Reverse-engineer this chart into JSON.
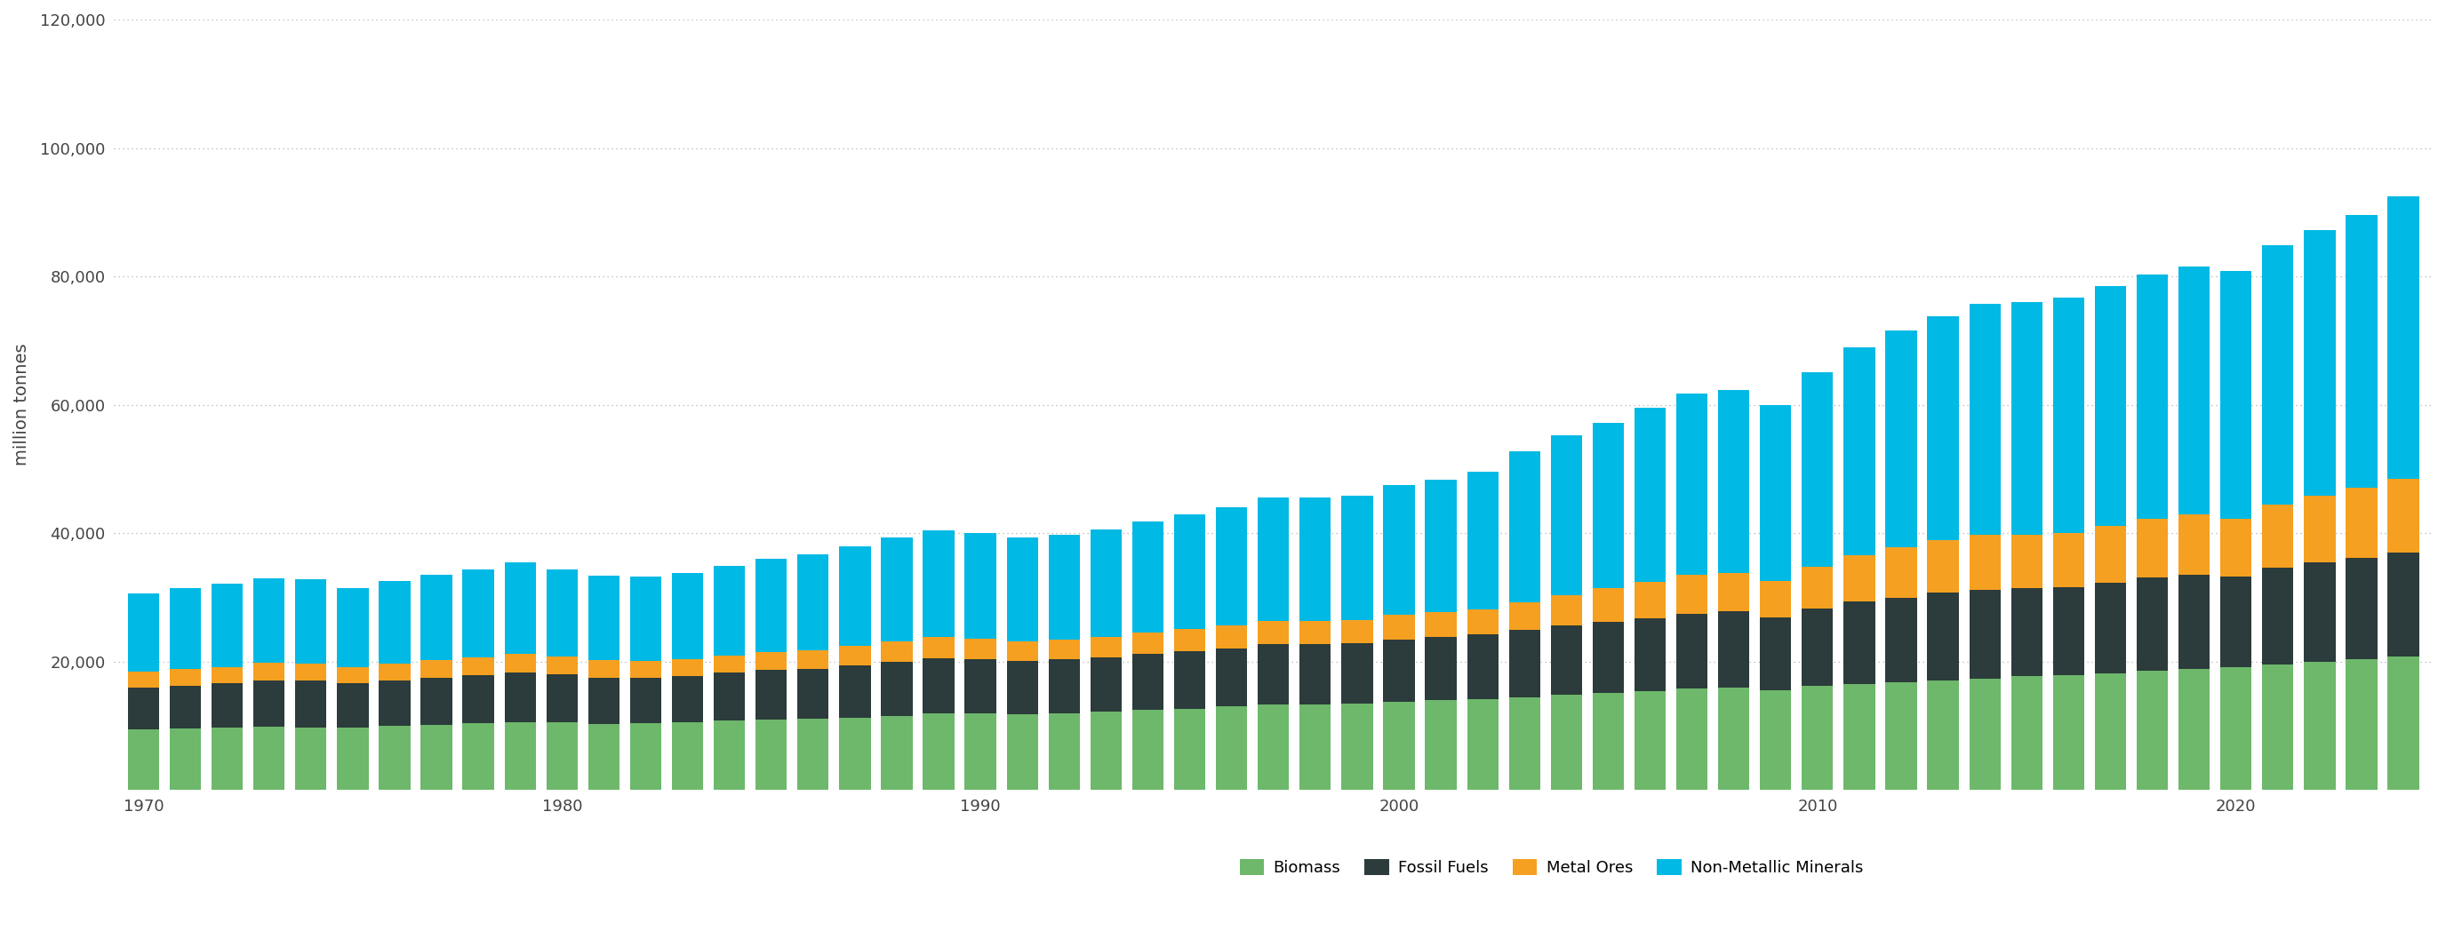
{
  "years": [
    1970,
    1971,
    1972,
    1973,
    1974,
    1975,
    1976,
    1977,
    1978,
    1979,
    1980,
    1981,
    1982,
    1983,
    1984,
    1985,
    1986,
    1987,
    1988,
    1989,
    1990,
    1991,
    1992,
    1993,
    1994,
    1995,
    1996,
    1997,
    1998,
    1999,
    2000,
    2001,
    2002,
    2003,
    2004,
    2005,
    2006,
    2007,
    2008,
    2009,
    2010,
    2011,
    2012,
    2013,
    2014,
    2015,
    2016,
    2017,
    2018,
    2019,
    2020,
    2021,
    2022,
    2023,
    2024
  ],
  "biomass": [
    9400,
    9600,
    9700,
    9900,
    9800,
    9700,
    10000,
    10200,
    10400,
    10600,
    10500,
    10300,
    10400,
    10600,
    10800,
    11000,
    11100,
    11300,
    11600,
    11900,
    11900,
    11800,
    12000,
    12200,
    12500,
    12700,
    13000,
    13300,
    13400,
    13500,
    13800,
    14000,
    14200,
    14500,
    14800,
    15100,
    15400,
    15800,
    16000,
    15600,
    16200,
    16500,
    16800,
    17100,
    17400,
    17700,
    17900,
    18200,
    18600,
    18900,
    19100,
    19600,
    20000,
    20400,
    20800
  ],
  "fossil_fuels": [
    6500,
    6700,
    6900,
    7200,
    7200,
    6900,
    7100,
    7300,
    7500,
    7700,
    7500,
    7200,
    7100,
    7200,
    7500,
    7700,
    7800,
    8100,
    8400,
    8600,
    8500,
    8300,
    8400,
    8500,
    8700,
    8900,
    9100,
    9400,
    9300,
    9400,
    9700,
    9800,
    10000,
    10400,
    10800,
    11100,
    11400,
    11700,
    11800,
    11300,
    12100,
    12900,
    13200,
    13600,
    13800,
    13700,
    13700,
    14100,
    14500,
    14700,
    14100,
    15000,
    15400,
    15800,
    16200
  ],
  "metal_ores": [
    2500,
    2600,
    2600,
    2700,
    2700,
    2500,
    2600,
    2700,
    2800,
    2900,
    2800,
    2700,
    2600,
    2600,
    2700,
    2800,
    2900,
    3000,
    3200,
    3300,
    3200,
    3100,
    3100,
    3200,
    3300,
    3500,
    3600,
    3700,
    3600,
    3600,
    3800,
    3900,
    4000,
    4400,
    4800,
    5200,
    5600,
    6000,
    6000,
    5600,
    6500,
    7200,
    7800,
    8200,
    8500,
    8400,
    8500,
    8800,
    9100,
    9300,
    9100,
    9800,
    10400,
    10900,
    11500
  ],
  "non_metallic": [
    12200,
    12600,
    12900,
    13200,
    13100,
    12400,
    12800,
    13300,
    13700,
    14200,
    13600,
    13200,
    13100,
    13400,
    13900,
    14500,
    14900,
    15500,
    16200,
    16700,
    16500,
    16100,
    16300,
    16700,
    17400,
    17900,
    18400,
    19100,
    19200,
    19400,
    20200,
    20700,
    21400,
    23400,
    24800,
    25800,
    27100,
    28300,
    28500,
    27400,
    30300,
    32300,
    33800,
    34900,
    36000,
    36200,
    36600,
    37400,
    38100,
    38700,
    38600,
    40400,
    41400,
    42400,
    44000
  ],
  "colors": {
    "biomass": "#6db86b",
    "fossil_fuels": "#2c3b3b",
    "metal_ores": "#f5a020",
    "non_metallic": "#00b9e4"
  },
  "legend_labels": [
    "Biomass",
    "Fossil Fuels",
    "Metal Ores",
    "Non-Metallic Minerals"
  ],
  "ylabel": "million tonnes",
  "ylim": [
    0,
    120000
  ],
  "yticks": [
    20000,
    40000,
    60000,
    80000,
    100000,
    120000
  ],
  "background_color": "#ffffff",
  "grid_color": "#b0b0b0"
}
